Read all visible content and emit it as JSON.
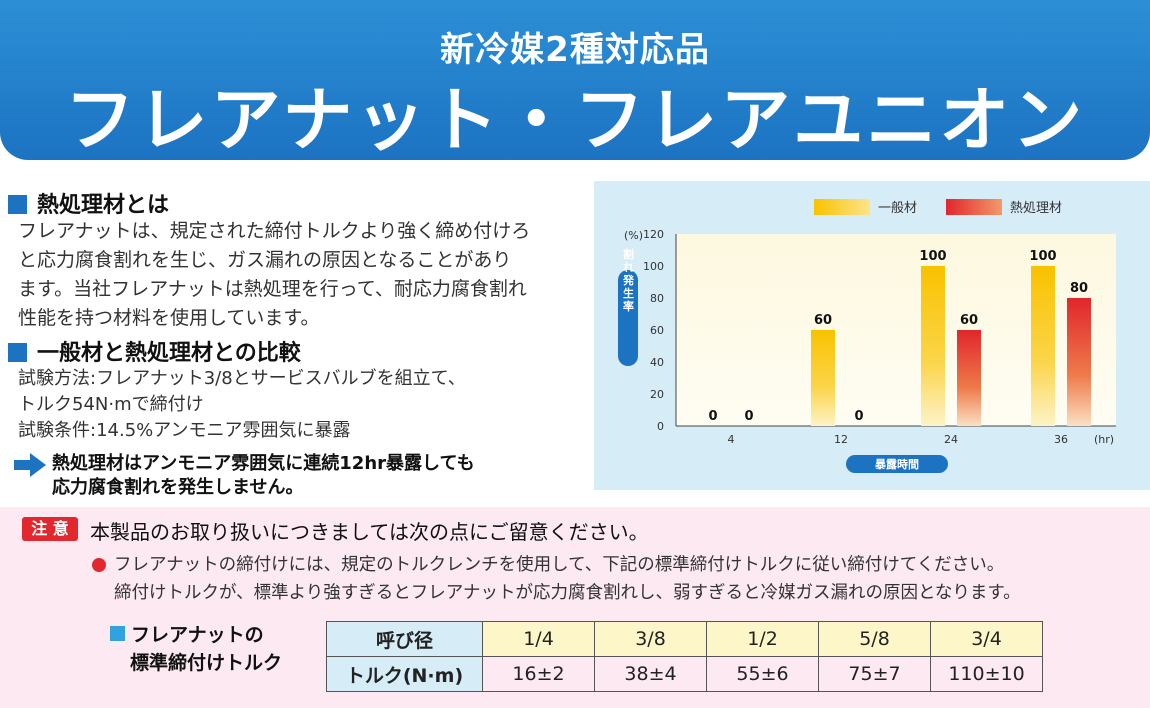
{
  "banner": {
    "subtitle": "新冷媒2種対応品",
    "title": "フレアナット・フレアユニオン"
  },
  "section1": {
    "heading": "熱処理材とは",
    "lines": [
      "フレアナットは、規定された締付トルクより強く締め付けろ",
      "と応力腐食割れを生じ、ガス漏れの原因となることがあり",
      "ます。当社フレアナットは熱処理を行って、耐応力腐食割れ",
      "性能を持つ材料を使用しています。"
    ]
  },
  "section2": {
    "heading": "一般材と熱処理材との比較",
    "test_lines": [
      "試験方法:フレアナット3/8とサービスバルブを組立て、",
      "トルク54N·mで締付け",
      "試験条件:14.5%アンモニア雰囲気に暴露"
    ],
    "conclusion_lines": [
      "熱処理材はアンモニア雰囲気に連続12hr暴露しても",
      "応力腐食割れを発生しません。"
    ]
  },
  "chart_data": {
    "type": "bar",
    "categories": [
      "4",
      "12",
      "24",
      "36"
    ],
    "series": [
      {
        "name": "一般材",
        "values": [
          0,
          60,
          100,
          100
        ],
        "color": "#f9c200"
      },
      {
        "name": "熱処理材",
        "values": [
          0,
          0,
          60,
          80
        ],
        "color": "#e1262c"
      }
    ],
    "y_unit": "(%)",
    "x_unit": "(hr)",
    "ylabel": "割れ発生率",
    "xlabel": "暴露時間",
    "ylim": [
      0,
      120
    ],
    "yticks": [
      0,
      20,
      40,
      60,
      80,
      100,
      120
    ],
    "grid": false,
    "legend": "top"
  },
  "caution": {
    "tag": "注 意",
    "title": "本製品のお取り扱いにつきましては次の点にご留意ください。",
    "lines": [
      "フレアナットの締付けには、規定のトルクレンチを使用して、下記の標準締付けトルクに従い締付けてください。",
      "締付けトルクが、標準より強すぎるとフレアナットが応力腐食割れし、弱すぎると冷媒ガス漏れの原因となります。"
    ]
  },
  "torque": {
    "label_lines": [
      "フレアナットの",
      "標準締付けトルク"
    ],
    "header_label": "呼び径",
    "sizes": [
      "1/4",
      "3/8",
      "1/2",
      "5/8",
      "3/4"
    ],
    "value_label": "トルク(N·m)",
    "values": [
      "16±2",
      "38±4",
      "55±6",
      "75±7",
      "110±10"
    ]
  }
}
